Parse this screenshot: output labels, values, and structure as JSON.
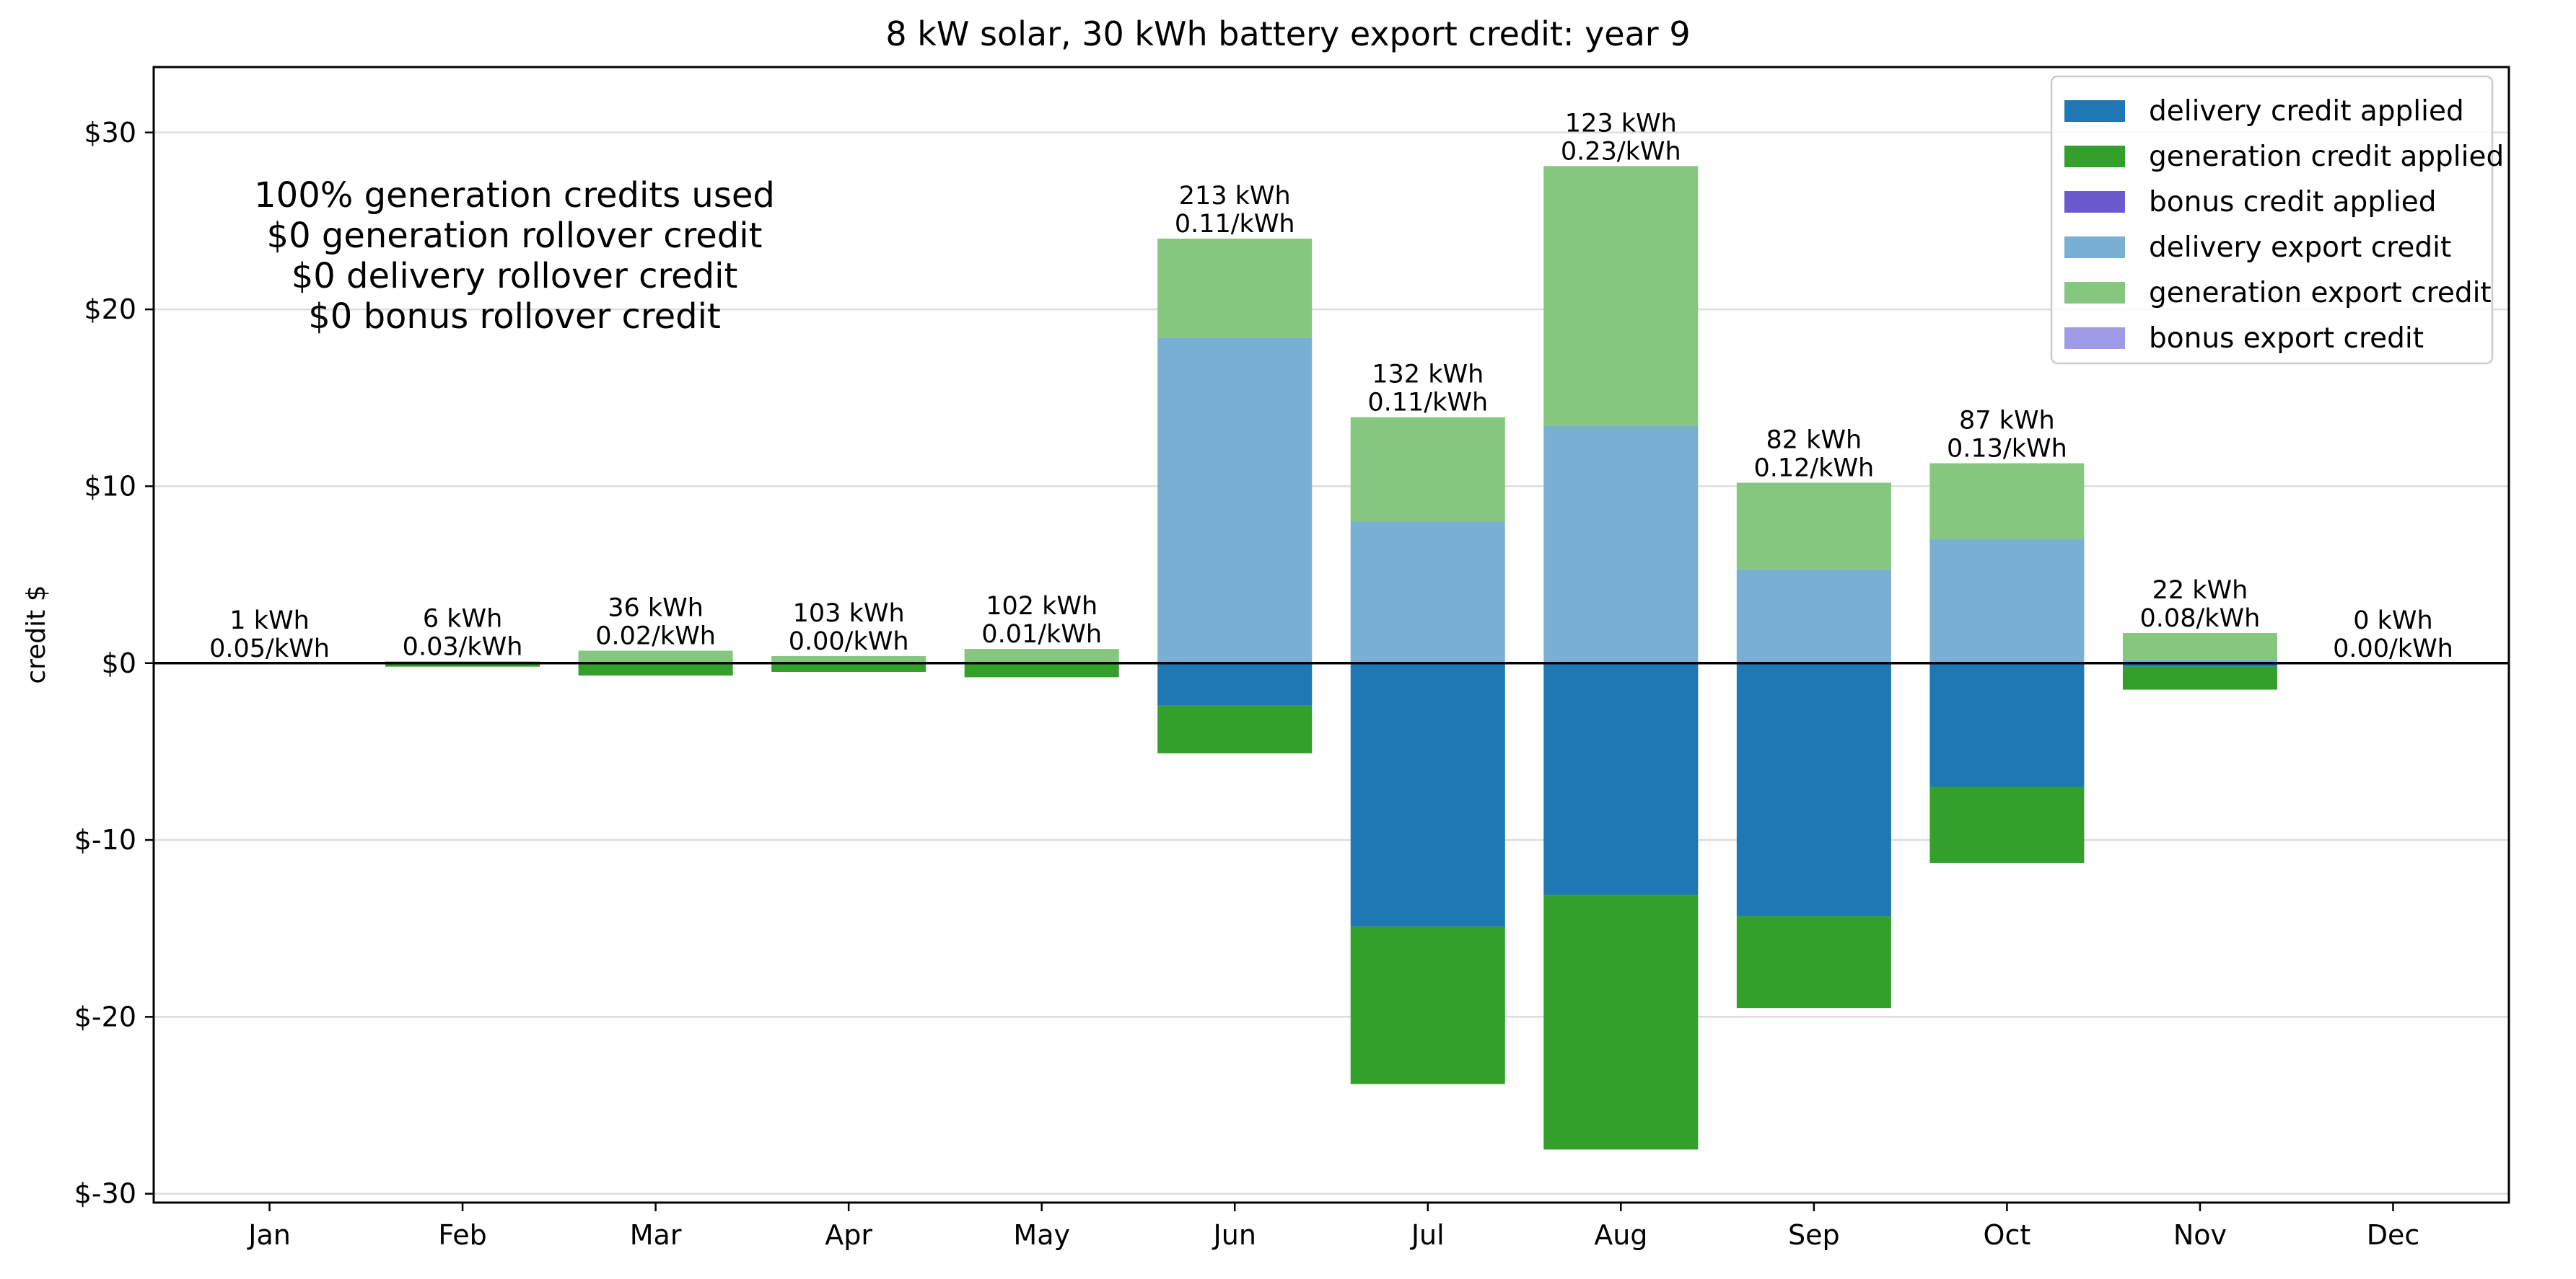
{
  "chart_data": {
    "type": "bar",
    "stacked": true,
    "title": "8 kW solar, 30 kWh battery export credit: year 9",
    "xlabel": "",
    "ylabel": "credit $",
    "ylim": [
      -30.5,
      33.7
    ],
    "grid": "horizontal",
    "legend_position": "top-right",
    "categories": [
      "Jan",
      "Feb",
      "Mar",
      "Apr",
      "May",
      "Jun",
      "Jul",
      "Aug",
      "Sep",
      "Oct",
      "Nov",
      "Dec"
    ],
    "yticks": [
      {
        "value": 30,
        "label": "$30"
      },
      {
        "value": 20,
        "label": "$20"
      },
      {
        "value": 10,
        "label": "$10"
      },
      {
        "value": 0,
        "label": "$0"
      },
      {
        "value": -10,
        "label": "$-10"
      },
      {
        "value": -20,
        "label": "$-20"
      },
      {
        "value": -30,
        "label": "$-30"
      }
    ],
    "series": [
      {
        "name": "delivery credit applied",
        "color": "#1f77b4",
        "values": [
          0,
          0,
          0,
          0,
          0,
          -2.4,
          -14.9,
          -13.1,
          -14.3,
          -7.0,
          -0.2,
          0
        ]
      },
      {
        "name": "generation credit applied",
        "color": "#33a02c",
        "values": [
          0,
          -0.2,
          -0.7,
          -0.5,
          -0.8,
          -2.7,
          -8.9,
          -14.4,
          -5.2,
          -4.3,
          -1.3,
          0
        ]
      },
      {
        "name": "bonus credit applied",
        "color": "#6a5acd",
        "values": [
          0,
          0,
          0,
          0,
          0,
          0,
          0,
          0,
          0,
          0,
          0,
          0
        ]
      },
      {
        "name": "delivery export credit",
        "color": "#79afd3",
        "values": [
          0,
          0,
          0,
          0,
          0,
          18.4,
          8.0,
          13.4,
          5.3,
          7.0,
          0.2,
          0
        ]
      },
      {
        "name": "generation export credit",
        "color": "#85c77e",
        "values": [
          0,
          0.1,
          0.7,
          0.4,
          0.8,
          5.6,
          5.9,
          14.7,
          4.9,
          4.3,
          1.5,
          0
        ]
      },
      {
        "name": "bonus export credit",
        "color": "#a09be6",
        "values": [
          0,
          0,
          0,
          0,
          0,
          0,
          0,
          0,
          0,
          0,
          0,
          0
        ]
      }
    ],
    "bar_labels": [
      [
        "1 kWh",
        "0.05/kWh"
      ],
      [
        "6 kWh",
        "0.03/kWh"
      ],
      [
        "36 kWh",
        "0.02/kWh"
      ],
      [
        "103 kWh",
        "0.00/kWh"
      ],
      [
        "102 kWh",
        "0.01/kWh"
      ],
      [
        "213 kWh",
        "0.11/kWh"
      ],
      [
        "132 kWh",
        "0.11/kWh"
      ],
      [
        "123 kWh",
        "0.23/kWh"
      ],
      [
        "82 kWh",
        "0.12/kWh"
      ],
      [
        "87 kWh",
        "0.13/kWh"
      ],
      [
        "22 kWh",
        "0.08/kWh"
      ],
      [
        "0 kWh",
        "0.00/kWh"
      ]
    ],
    "annotation": [
      "100% generation credits used",
      "$0 generation rollover credit",
      "$0 delivery rollover credit",
      "$0 bonus rollover credit"
    ]
  }
}
